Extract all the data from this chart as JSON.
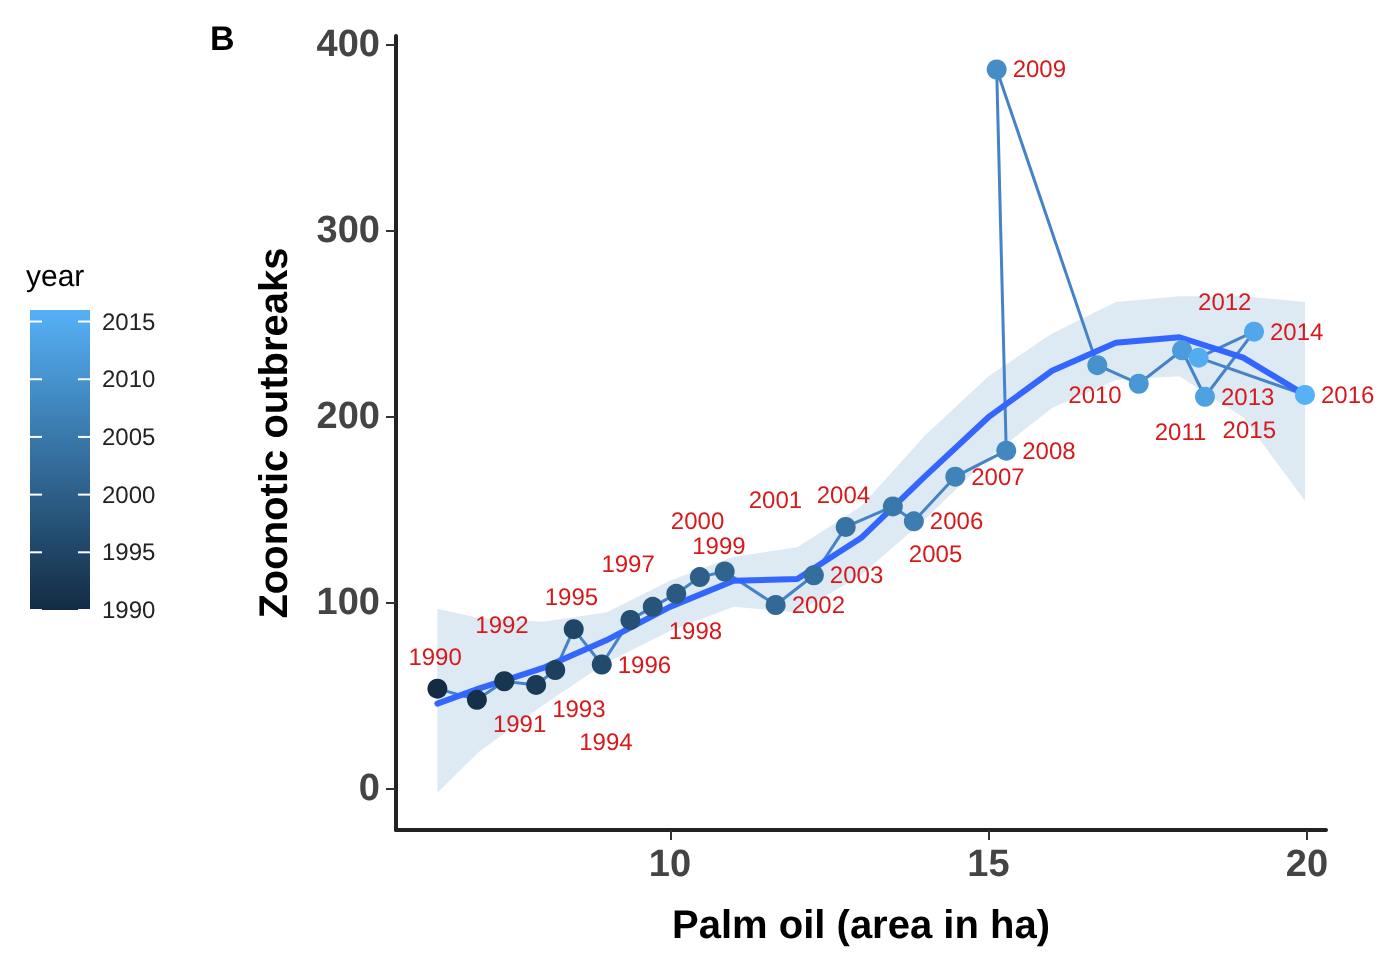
{
  "chart_data": {
    "type": "line",
    "title": "B",
    "xlabel": "Palm oil (area in ha)",
    "ylabel": "Zoonotic outbreaks",
    "clabel": "year",
    "clim": [
      1990,
      2016
    ],
    "cticks": [
      1990,
      1995,
      2000,
      2005,
      2010,
      2015
    ],
    "xlim": [
      5.7,
      20.3
    ],
    "xticks": [
      10,
      15,
      20
    ],
    "ylim": [
      -22,
      405
    ],
    "yticks": [
      0,
      100,
      200,
      300,
      400
    ],
    "grid": false,
    "series": [
      {
        "marker": "circle",
        "color": "#4682c8",
        "x": [
          6.35,
          6.97,
          7.4,
          7.9,
          8.2,
          8.49,
          8.93,
          9.38,
          9.73,
          10.1,
          10.47,
          10.86,
          11.66,
          12.26,
          12.76,
          13.5,
          13.83,
          14.48,
          15.28,
          15.13,
          16.71,
          17.36,
          18.04,
          18.4,
          19.17,
          18.3,
          19.97
        ],
        "values": [
          54,
          48,
          58,
          56,
          64,
          86,
          67,
          91,
          98,
          105,
          114,
          117,
          99,
          115,
          141,
          152,
          144,
          168,
          182,
          387,
          228,
          218,
          236,
          211,
          246,
          232,
          212
        ],
        "colors": [
          "#132b43",
          "#16304a",
          "#183551",
          "#1b3a58",
          "#1d405f",
          "#204566",
          "#224a6c",
          "#254f73",
          "#28547a",
          "#2a5981",
          "#2d5f88",
          "#2f648f",
          "#326996",
          "#346e9d",
          "#3773a4",
          "#3a78ab",
          "#3c7eb2",
          "#3f83b9",
          "#4188c0",
          "#448dc7",
          "#4692cd",
          "#4997d4",
          "#4c9cdb",
          "#4ea2e2",
          "#51a7e9",
          "#53acf0",
          "#56b1f7"
        ]
      },
      {
        "marker": "none",
        "color": "#3366ff",
        "x": [
          6.35,
          7,
          8,
          9,
          10,
          11,
          12,
          13,
          14,
          15,
          16,
          17,
          18,
          19,
          19.97
        ],
        "values": [
          46,
          54,
          65,
          80,
          98,
          112,
          113,
          135,
          168,
          200,
          225,
          240,
          243,
          232,
          212
        ],
        "lower": [
          -2,
          20,
          45,
          68,
          85,
          98,
          95,
          115,
          145,
          178,
          205,
          220,
          222,
          200,
          155
        ],
        "upper": [
          97,
          92,
          90,
          95,
          112,
          125,
          130,
          152,
          190,
          222,
          245,
          262,
          265,
          265,
          262
        ]
      }
    ],
    "annotations": [
      {
        "text": "1990",
        "x": 6.35,
        "y": 54
      },
      {
        "text": "1991",
        "x": 6.97,
        "y": 48
      },
      {
        "text": "1992",
        "x": 7.4,
        "y": 58
      },
      {
        "text": "1993",
        "x": 7.9,
        "y": 56
      },
      {
        "text": "1994",
        "x": 8.2,
        "y": 64
      },
      {
        "text": "1995",
        "x": 8.49,
        "y": 86
      },
      {
        "text": "1996",
        "x": 8.93,
        "y": 67
      },
      {
        "text": "1997",
        "x": 9.38,
        "y": 91
      },
      {
        "text": "1998",
        "x": 9.73,
        "y": 98
      },
      {
        "text": "1999",
        "x": 10.1,
        "y": 105
      },
      {
        "text": "2000",
        "x": 10.47,
        "y": 114
      },
      {
        "text": "2001",
        "x": 10.86,
        "y": 117
      },
      {
        "text": "2002",
        "x": 11.66,
        "y": 99
      },
      {
        "text": "2003",
        "x": 12.26,
        "y": 115
      },
      {
        "text": "2004",
        "x": 12.76,
        "y": 141
      },
      {
        "text": "2005",
        "x": 13.5,
        "y": 152
      },
      {
        "text": "2006",
        "x": 13.83,
        "y": 144
      },
      {
        "text": "2007",
        "x": 14.48,
        "y": 168
      },
      {
        "text": "2008",
        "x": 15.28,
        "y": 182
      },
      {
        "text": "2009",
        "x": 15.13,
        "y": 387
      },
      {
        "text": "2010",
        "x": 16.71,
        "y": 228
      },
      {
        "text": "2011",
        "x": 17.36,
        "y": 218
      },
      {
        "text": "2012",
        "x": 18.04,
        "y": 236
      },
      {
        "text": "2013",
        "x": 18.4,
        "y": 211
      },
      {
        "text": "2014",
        "x": 19.17,
        "y": 246
      },
      {
        "text": "2015",
        "x": 18.3,
        "y": 232
      },
      {
        "text": "2016",
        "x": 19.97,
        "y": 212
      }
    ]
  }
}
